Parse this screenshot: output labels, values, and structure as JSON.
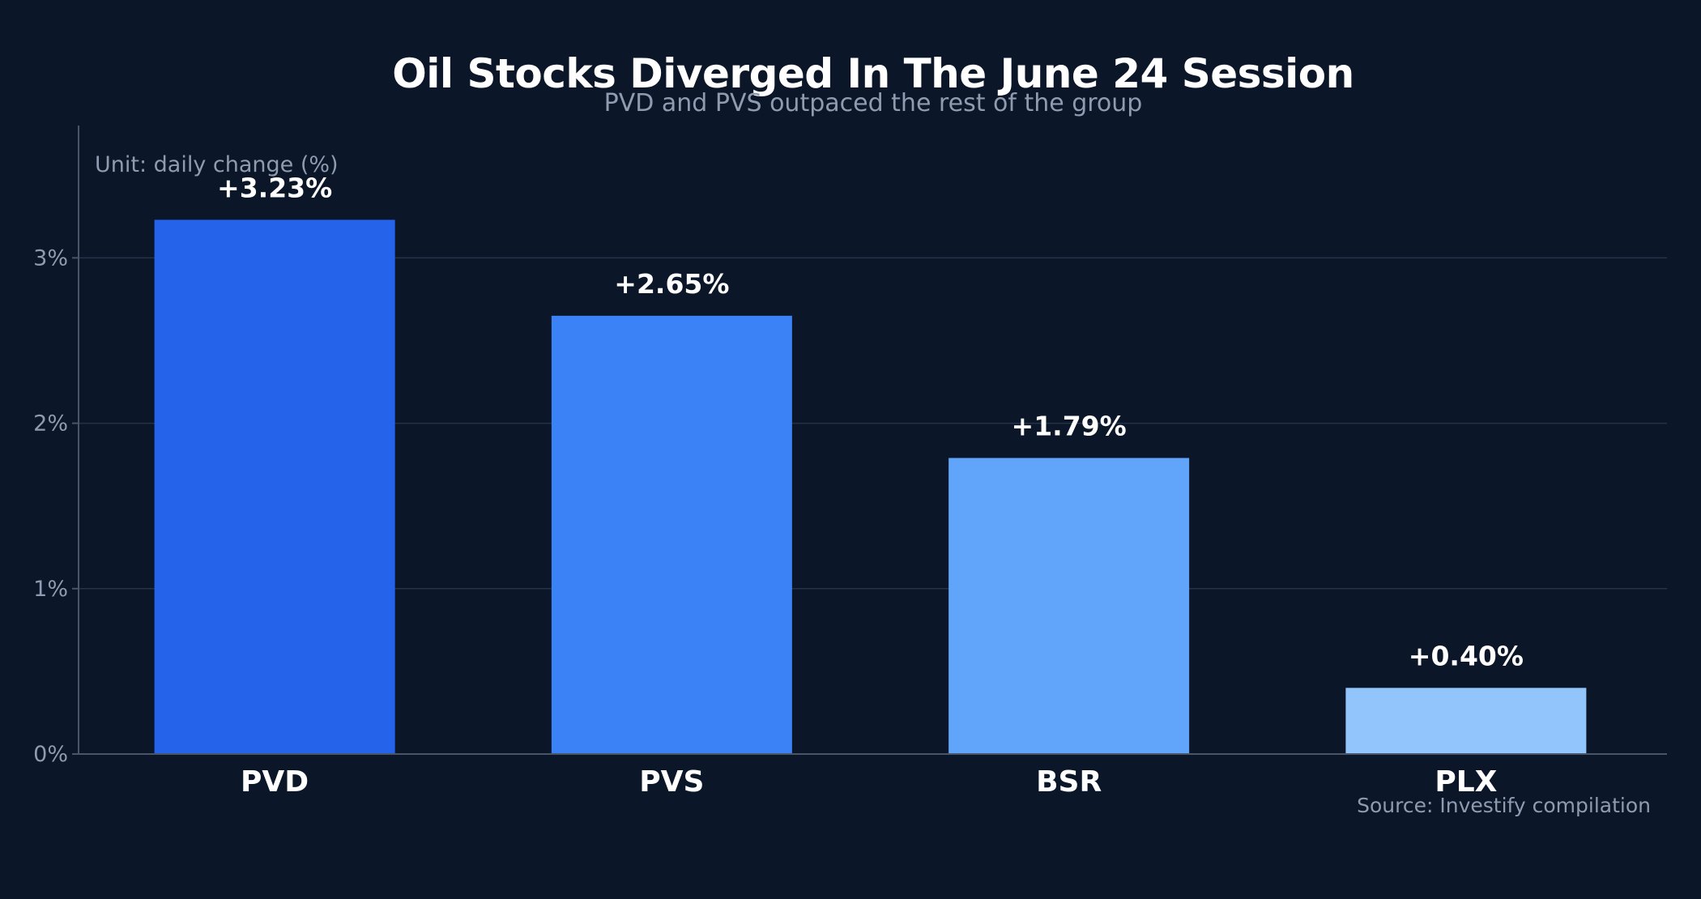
{
  "chart_data": {
    "type": "bar",
    "title": "Oil Stocks Diverged In The June 24 Session",
    "subtitle": "PVD and PVS outpaced the rest of the group",
    "unit_note": "Unit: daily change (%)",
    "source": "Source: Investify compilation",
    "categories": [
      "PVD",
      "PVS",
      "BSR",
      "PLX"
    ],
    "values": [
      3.23,
      2.65,
      1.79,
      0.4
    ],
    "value_labels": [
      "+3.23%",
      "+2.65%",
      "+1.79%",
      "+0.40%"
    ],
    "bar_colors": [
      "#2563eb",
      "#3b82f6",
      "#60a5fa",
      "#93c5fd"
    ],
    "ylim": [
      0,
      3.8
    ],
    "yticks": [
      0,
      1,
      2,
      3
    ],
    "ytick_labels": [
      "0%",
      "1%",
      "2%",
      "3%"
    ],
    "grid": "horizontal",
    "colors": {
      "background": "#0b1628",
      "grid": "#26324a",
      "axis": "#4a5568",
      "text_primary": "#ffffff",
      "text_muted": "#8f9bb0"
    }
  }
}
